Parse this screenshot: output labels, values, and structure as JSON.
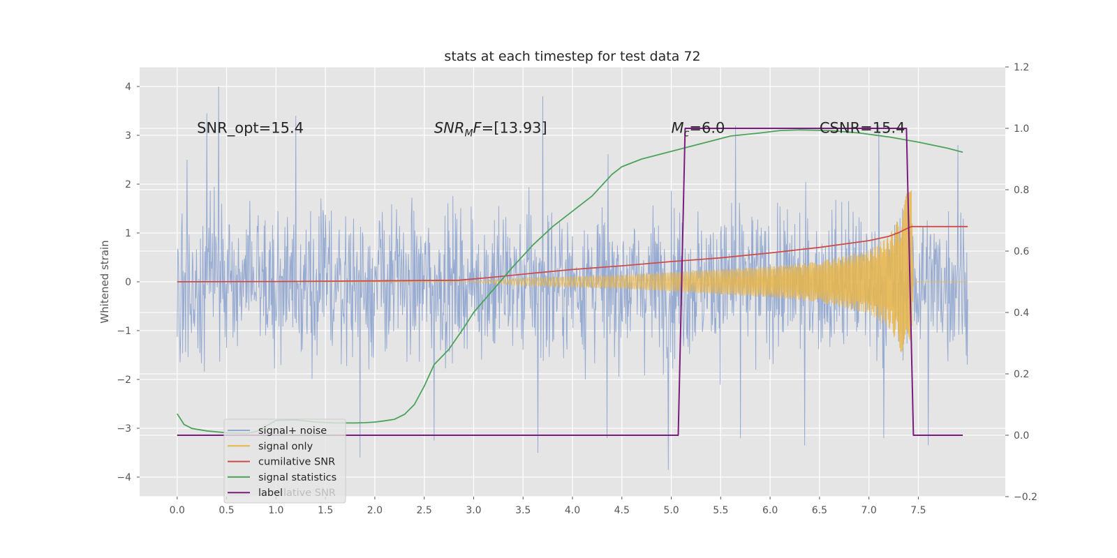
{
  "chart_data": {
    "type": "line",
    "title": "stats at each timestep for test data 72",
    "ylabel": "Whitened strain",
    "xlabel": "",
    "xlim": [
      -0.38,
      8.38
    ],
    "ylim": [
      -4.4,
      4.4
    ],
    "y2lim": [
      -0.2,
      1.2
    ],
    "grid": true,
    "legend_position": "lower-left",
    "x_ticks": [
      "0.0",
      "0.5",
      "1.0",
      "1.5",
      "2.0",
      "2.5",
      "3.0",
      "3.5",
      "4.0",
      "4.5",
      "5.0",
      "5.5",
      "6.0",
      "6.5",
      "7.0",
      "7.5"
    ],
    "y_ticks": [
      "−4",
      "−3",
      "−2",
      "−1",
      "0",
      "1",
      "2",
      "3",
      "4"
    ],
    "y2_ticks": [
      "−0.2",
      "0.0",
      "0.2",
      "0.4",
      "0.6",
      "0.8",
      "1.0",
      "1.2"
    ],
    "annotations": [
      {
        "id": "snr-opt",
        "text": "SNR_opt=15.4",
        "x": 0.2,
        "y": 3.15
      },
      {
        "id": "snr-mf",
        "base": "SNR",
        "sub": "M",
        "rest": "F=[13.93]",
        "x": 2.6,
        "y": 3.15
      },
      {
        "id": "mc",
        "base": "M",
        "sub": "c",
        "rest": "=6.0",
        "x": 5.0,
        "y": 3.15
      },
      {
        "id": "csnr",
        "text": "CSNR=15.4",
        "x": 6.5,
        "y": 3.15
      }
    ],
    "series": [
      {
        "id": "signal-noise",
        "name": "signal+ noise",
        "color": "#92a8d1",
        "axis": "left",
        "x_range": [
          0.0,
          8.0
        ],
        "samples": 1600,
        "envelope_upper": [
          [
            0.0,
            1.9
          ],
          [
            8.0,
            1.9
          ]
        ],
        "spikes_max": [
          [
            0.1,
            2.5
          ],
          [
            0.3,
            3.45
          ],
          [
            0.42,
            4.0
          ],
          [
            1.2,
            3.4
          ],
          [
            3.7,
            3.8
          ],
          [
            5.65,
            3.2
          ],
          [
            7.1,
            3.2
          ],
          [
            7.9,
            2.8
          ]
        ],
        "spikes_min": [
          [
            1.85,
            -3.6
          ],
          [
            2.6,
            -3.25
          ],
          [
            3.65,
            -3.5
          ],
          [
            4.35,
            -3.2
          ],
          [
            4.97,
            -3.85
          ],
          [
            5.7,
            -3.2
          ],
          [
            6.35,
            -3.35
          ],
          [
            7.15,
            -3.2
          ],
          [
            7.6,
            -3.35
          ]
        ]
      },
      {
        "id": "signal-only",
        "name": "signal only",
        "color": "#e8b54a",
        "axis": "left",
        "x_range": [
          0.0,
          7.43
        ],
        "envelope": [
          [
            0.0,
            0.0
          ],
          [
            2.9,
            0.0
          ],
          [
            3.5,
            0.08
          ],
          [
            4.5,
            0.14
          ],
          [
            5.0,
            0.2
          ],
          [
            6.0,
            0.32
          ],
          [
            6.5,
            0.42
          ],
          [
            7.0,
            0.65
          ],
          [
            7.2,
            0.95
          ],
          [
            7.3,
            1.3
          ],
          [
            7.38,
            1.8
          ],
          [
            7.43,
            1.9
          ],
          [
            7.45,
            0.0
          ],
          [
            8.0,
            0.0
          ]
        ]
      },
      {
        "id": "cumulative-snr",
        "name": "cumilative SNR",
        "color": "#cc4b4b",
        "axis": "right",
        "x": [
          0.0,
          1.0,
          2.0,
          2.85,
          3.2,
          3.6,
          4.0,
          4.5,
          5.0,
          5.5,
          6.0,
          6.5,
          7.0,
          7.2,
          7.3,
          7.38,
          7.43,
          8.0
        ],
        "y": [
          0.5,
          0.501,
          0.503,
          0.505,
          0.515,
          0.528,
          0.54,
          0.552,
          0.566,
          0.578,
          0.594,
          0.612,
          0.634,
          0.648,
          0.66,
          0.673,
          0.68,
          0.68
        ]
      },
      {
        "id": "signal-statistics",
        "name": "signal statistics",
        "color": "#4aa35a",
        "axis": "right",
        "x": [
          0.0,
          0.07,
          0.15,
          0.3,
          0.5,
          0.7,
          0.8,
          1.0,
          1.2,
          1.4,
          1.6,
          1.8,
          1.9,
          2.0,
          2.1,
          2.2,
          2.3,
          2.4,
          2.5,
          2.6,
          2.75,
          2.9,
          3.0,
          3.2,
          3.4,
          3.6,
          3.8,
          4.0,
          4.2,
          4.4,
          4.5,
          4.7,
          5.0,
          5.3,
          5.6,
          5.9,
          6.1,
          6.3,
          6.6,
          6.9,
          7.2,
          7.5,
          7.8,
          7.95
        ],
        "y": [
          0.07,
          0.035,
          0.022,
          0.014,
          0.008,
          0.006,
          0.012,
          0.048,
          0.05,
          0.043,
          0.04,
          0.04,
          0.041,
          0.043,
          0.047,
          0.052,
          0.068,
          0.1,
          0.16,
          0.23,
          0.28,
          0.35,
          0.4,
          0.475,
          0.55,
          0.62,
          0.68,
          0.73,
          0.78,
          0.85,
          0.875,
          0.9,
          0.925,
          0.95,
          0.975,
          0.985,
          0.993,
          0.995,
          0.993,
          0.985,
          0.972,
          0.955,
          0.935,
          0.922
        ]
      },
      {
        "id": "label",
        "name": "label",
        "color": "#7b1b7e",
        "axis": "right",
        "x": [
          0.0,
          5.07,
          5.14,
          7.38,
          7.45,
          7.95
        ],
        "y": [
          0.0,
          0.0,
          1.0,
          1.0,
          0.0,
          0.0
        ]
      }
    ],
    "legend_ghost_text": "lative SNR"
  }
}
